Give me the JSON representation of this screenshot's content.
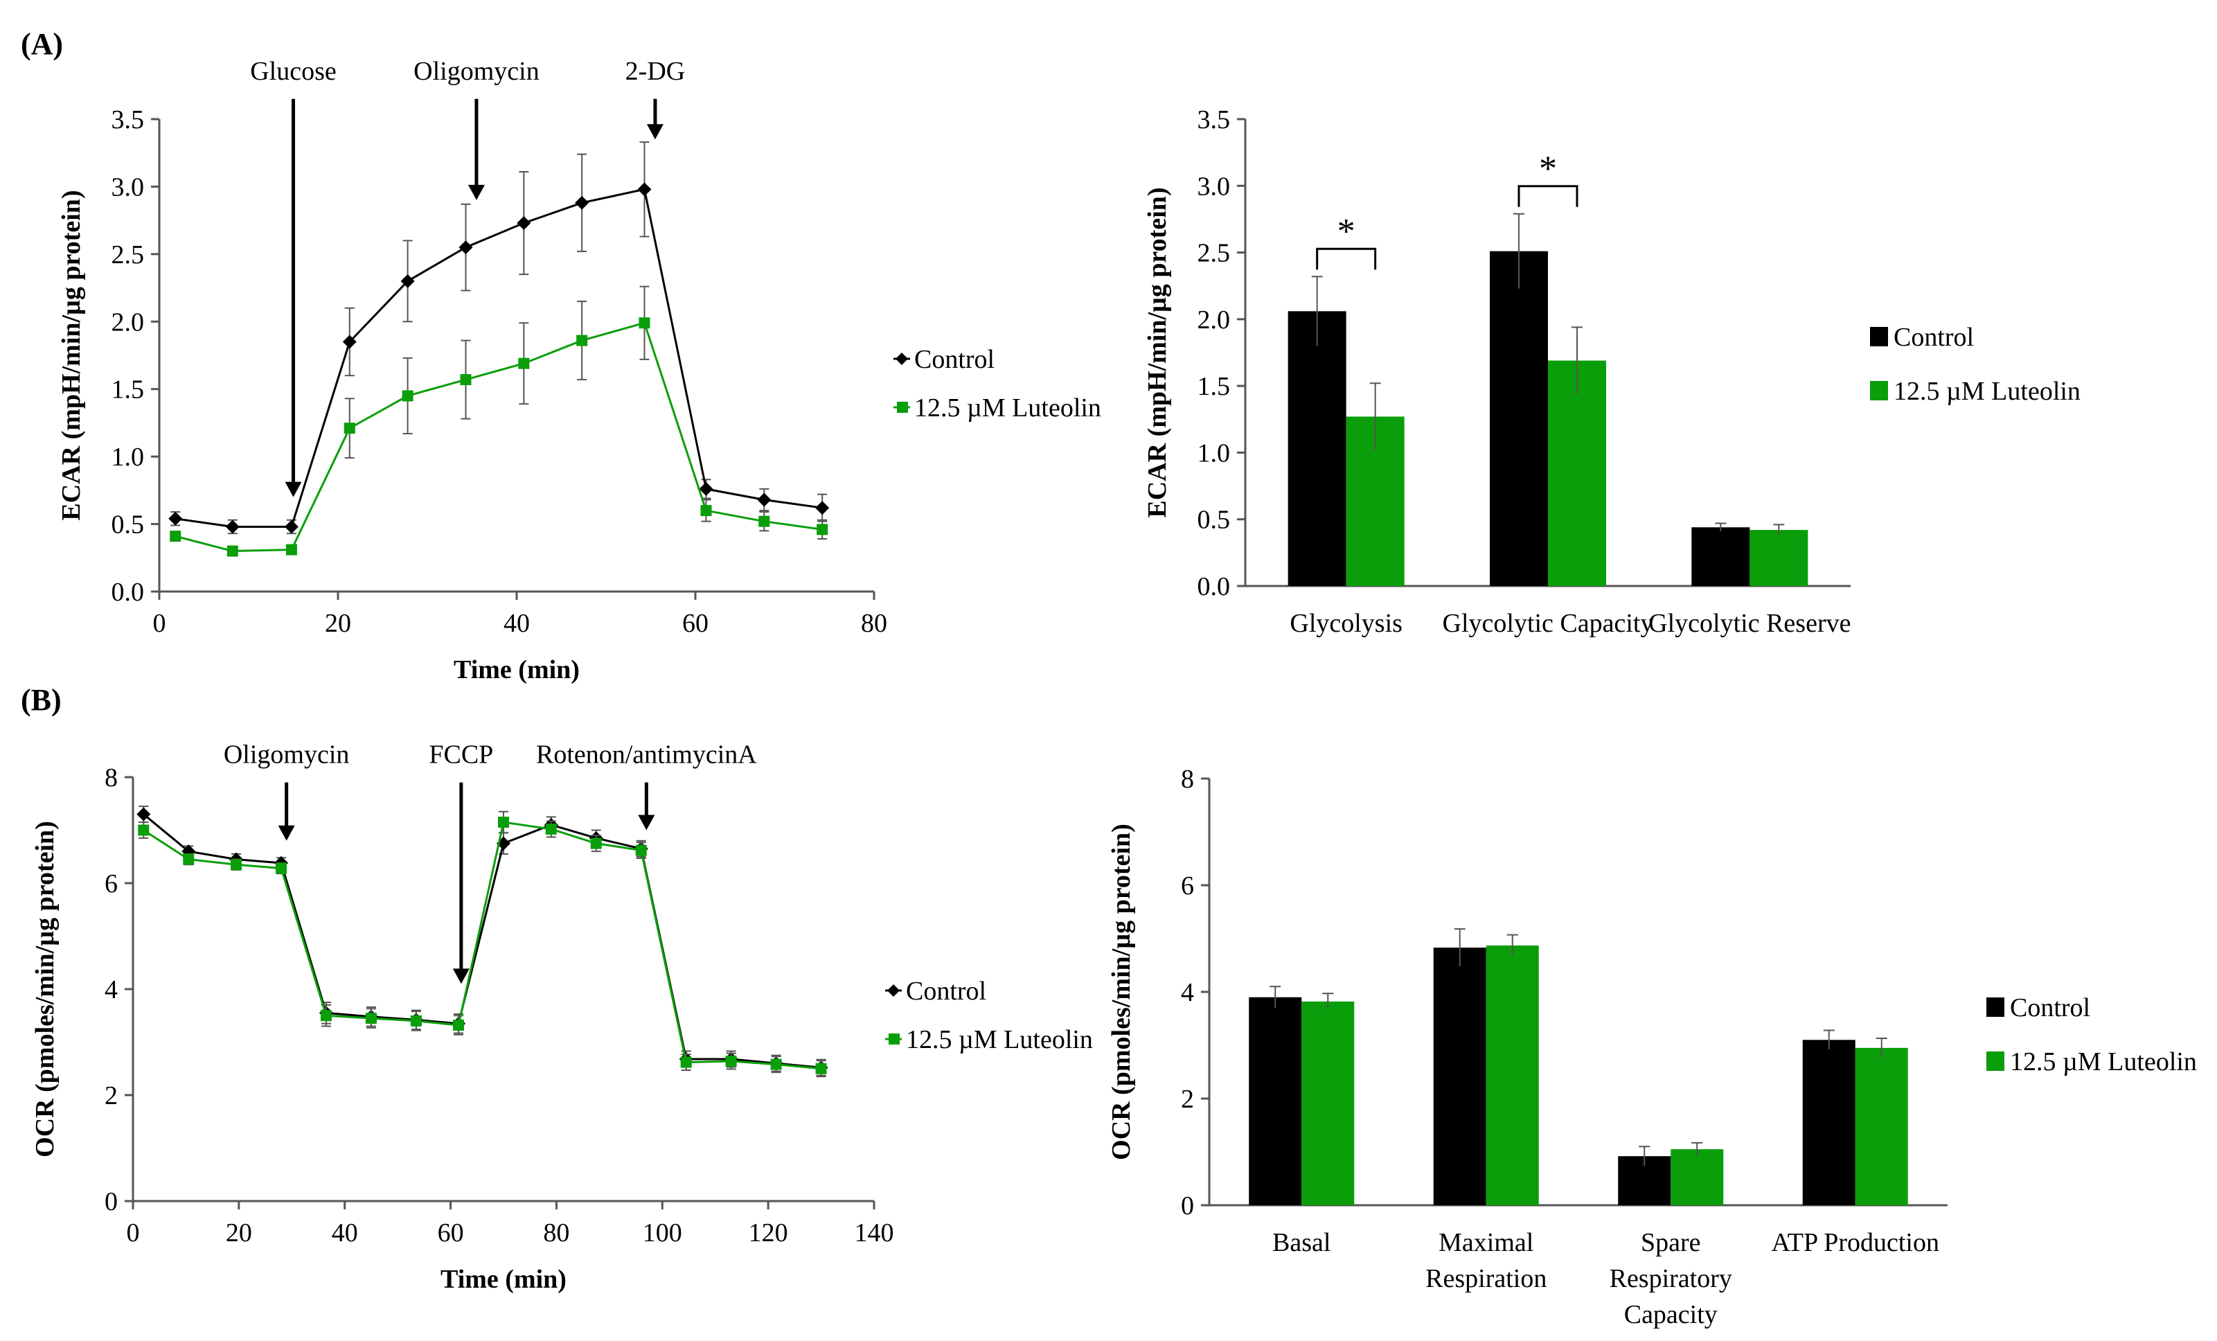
{
  "panel_labels": {
    "a": "(A)",
    "b": "(B)"
  },
  "colors": {
    "control": "#000000",
    "luteolin": "#0a9e0a",
    "axis": "#555555"
  },
  "chart_data": [
    {
      "id": "ecar-line",
      "type": "line",
      "xlabel": "Time (min)",
      "ylabel": "ECAR (mpH/min/µg protein)",
      "xlim": [
        0,
        80
      ],
      "ylim": [
        0,
        3.5
      ],
      "xticks": [
        0,
        20,
        40,
        60,
        80
      ],
      "yticks": [
        0,
        0.5,
        1.0,
        1.5,
        2.0,
        2.5,
        3.0,
        3.5
      ],
      "ytick_labels": [
        "0.0",
        "0.5",
        "1.0",
        "1.5",
        "2.0",
        "2.5",
        "3.0",
        "3.5"
      ],
      "x": [
        1.8,
        8.2,
        14.8,
        21.3,
        27.8,
        34.3,
        40.8,
        47.3,
        54.3,
        61.2,
        67.7,
        74.2
      ],
      "series": [
        {
          "name": "Control",
          "color": "#000000",
          "marker": "diamond",
          "values": [
            0.54,
            0.48,
            0.48,
            1.85,
            2.3,
            2.55,
            2.73,
            2.88,
            2.98,
            0.76,
            0.68,
            0.62
          ],
          "errors": [
            0.05,
            0.05,
            0.05,
            0.25,
            0.3,
            0.32,
            0.38,
            0.36,
            0.35,
            0.07,
            0.08,
            0.1
          ]
        },
        {
          "name": "12.5 µM Luteolin",
          "color": "#0a9e0a",
          "marker": "square",
          "values": [
            0.41,
            0.3,
            0.31,
            1.21,
            1.45,
            1.57,
            1.69,
            1.86,
            1.99,
            0.6,
            0.52,
            0.46
          ],
          "errors": [
            0.03,
            0.03,
            0.03,
            0.22,
            0.28,
            0.29,
            0.3,
            0.29,
            0.27,
            0.08,
            0.07,
            0.07
          ]
        }
      ],
      "annotations": [
        {
          "label": "Glucose",
          "x": 15,
          "y_top": 3.65,
          "y_bottom": 0.7
        },
        {
          "label": "Oligomycin",
          "x": 35.5,
          "y_top": 3.65,
          "y_bottom": 2.9
        },
        {
          "label": "2-DG",
          "x": 55.5,
          "y_top": 3.65,
          "y_bottom": 3.35
        }
      ]
    },
    {
      "id": "ecar-bar",
      "type": "bar",
      "ylabel": "ECAR (mpH/min/µg protein)",
      "ylim": [
        0,
        3.5
      ],
      "yticks": [
        0,
        0.5,
        1.0,
        1.5,
        2.0,
        2.5,
        3.0,
        3.5
      ],
      "ytick_labels": [
        "0.0",
        "0.5",
        "1.0",
        "1.5",
        "2.0",
        "2.5",
        "3.0",
        "3.5"
      ],
      "categories": [
        "Glycolysis",
        "Glycolytic Capacity",
        "Glycolytic Reserve"
      ],
      "series": [
        {
          "name": "Control",
          "color": "#000000",
          "values": [
            2.06,
            2.51,
            0.44
          ],
          "errors": [
            0.26,
            0.28,
            0.03
          ]
        },
        {
          "name": "12.5 µM Luteolin",
          "color": "#0a9e0a",
          "values": [
            1.27,
            1.69,
            0.42
          ],
          "errors": [
            0.25,
            0.25,
            0.04
          ]
        }
      ],
      "significance": [
        {
          "category": 0,
          "label": "*"
        },
        {
          "category": 1,
          "label": "*"
        }
      ]
    },
    {
      "id": "ocr-line",
      "type": "line",
      "xlabel": "Time (min)",
      "ylabel": "OCR (pmoles/min/µg protein)",
      "xlim": [
        0,
        140
      ],
      "ylim": [
        0,
        8
      ],
      "xticks": [
        0,
        20,
        40,
        60,
        80,
        100,
        120,
        140
      ],
      "yticks": [
        0,
        2,
        4,
        6,
        8
      ],
      "ytick_labels": [
        "0",
        "2",
        "4",
        "6",
        "8"
      ],
      "x": [
        2,
        10.5,
        19.5,
        28,
        36.5,
        45,
        53.5,
        61.5,
        70,
        79,
        87.5,
        96,
        104.5,
        113,
        121.5,
        130
      ],
      "series": [
        {
          "name": "Control",
          "color": "#000000",
          "marker": "diamond",
          "values": [
            7.3,
            6.6,
            6.45,
            6.38,
            3.55,
            3.48,
            3.42,
            3.35,
            6.75,
            7.1,
            6.85,
            6.65,
            2.68,
            2.68,
            2.6,
            2.52
          ],
          "errors": [
            0.15,
            0.1,
            0.1,
            0.1,
            0.2,
            0.18,
            0.18,
            0.18,
            0.2,
            0.15,
            0.15,
            0.15,
            0.15,
            0.15,
            0.15,
            0.15
          ]
        },
        {
          "name": "12.5 µM Luteolin",
          "color": "#0a9e0a",
          "marker": "square",
          "values": [
            7.0,
            6.45,
            6.35,
            6.28,
            3.5,
            3.45,
            3.4,
            3.32,
            7.15,
            7.02,
            6.75,
            6.62,
            2.62,
            2.64,
            2.58,
            2.5
          ],
          "errors": [
            0.15,
            0.1,
            0.1,
            0.1,
            0.2,
            0.18,
            0.18,
            0.18,
            0.2,
            0.15,
            0.15,
            0.15,
            0.15,
            0.15,
            0.15,
            0.15
          ]
        }
      ],
      "annotations": [
        {
          "label": "Oligomycin",
          "x": 29,
          "y_top": 7.9,
          "y_bottom": 6.8
        },
        {
          "label": "FCCP",
          "x": 62,
          "y_top": 7.9,
          "y_bottom": 4.1
        },
        {
          "label": "Rotenon/antimycinA",
          "x": 97,
          "y_top": 7.9,
          "y_bottom": 7.0
        }
      ]
    },
    {
      "id": "ocr-bar",
      "type": "bar",
      "ylabel": "OCR (pmoles/min/µg protein)",
      "ylim": [
        0,
        8
      ],
      "yticks": [
        0,
        2,
        4,
        6,
        8
      ],
      "ytick_labels": [
        "0",
        "2",
        "4",
        "6",
        "8"
      ],
      "categories": [
        "Basal",
        "Maximal Respiration",
        "Spare Respiratory Capacity",
        "ATP Production"
      ],
      "category_lines": [
        [
          "Basal"
        ],
        [
          "Maximal",
          "Respiration"
        ],
        [
          "Spare",
          "Respiratory",
          "Capacity"
        ],
        [
          "ATP Production"
        ]
      ],
      "series": [
        {
          "name": "Control",
          "color": "#000000",
          "values": [
            3.9,
            4.83,
            0.92,
            3.1
          ],
          "errors": [
            0.2,
            0.35,
            0.18,
            0.18
          ]
        },
        {
          "name": "12.5 µM Luteolin",
          "color": "#0a9e0a",
          "values": [
            3.82,
            4.87,
            1.05,
            2.95
          ],
          "errors": [
            0.15,
            0.2,
            0.12,
            0.18
          ]
        }
      ]
    }
  ]
}
